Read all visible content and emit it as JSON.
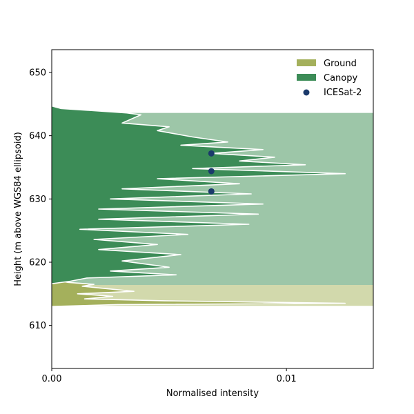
{
  "chart_data": {
    "type": "area",
    "xlabel": "Normalised intensity",
    "ylabel": "Height (m above WGS84 ellipsoid)",
    "xlim": [
      0.0,
      0.0137
    ],
    "ylim": [
      603.2,
      653.6
    ],
    "x_ticks": [
      0.0,
      0.01
    ],
    "x_tick_labels": [
      "0.00",
      "0.01"
    ],
    "y_ticks": [
      610,
      620,
      630,
      640,
      650
    ],
    "y_tick_labels": [
      "610",
      "620",
      "630",
      "640",
      "650"
    ],
    "grid": false,
    "legend_position": "top-right",
    "colors": {
      "ground": "#a4b05c",
      "ground_band": "#d2d9ac",
      "canopy": "#3c8c57",
      "canopy_band": "#9dc6a8",
      "profile_line": "#ffffff",
      "icesat": "#1b3a6b"
    },
    "legend": [
      {
        "label": "Ground",
        "kind": "patch",
        "color": "#a4b05c"
      },
      {
        "label": "Canopy",
        "kind": "patch",
        "color": "#3c8c57"
      },
      {
        "label": "ICESat-2",
        "kind": "marker",
        "color": "#1b3a6b"
      }
    ],
    "bands": [
      {
        "name": "Ground",
        "y_range": [
          613.1,
          616.4
        ],
        "color": "#d2d9ac"
      },
      {
        "name": "Canopy",
        "y_range": [
          616.4,
          643.6
        ],
        "color": "#9dc6a8"
      }
    ],
    "series": [
      {
        "name": "Ground",
        "fill": "#a4b05c",
        "points": [
          [
            0.0,
            617.3
          ],
          [
            0.0007,
            616.8
          ],
          [
            0.0018,
            616.5
          ],
          [
            0.0013,
            616.2
          ],
          [
            0.0021,
            615.9
          ],
          [
            0.0035,
            615.4
          ],
          [
            0.0011,
            615.0
          ],
          [
            0.0026,
            614.6
          ],
          [
            0.0014,
            614.2
          ],
          [
            0.0048,
            613.9
          ],
          [
            0.0125,
            613.5
          ],
          [
            0.0028,
            613.3
          ],
          [
            0.0,
            613.0
          ]
        ]
      },
      {
        "name": "Canopy",
        "fill": "#3c8c57",
        "points": [
          [
            0.0,
            644.7
          ],
          [
            0.0004,
            644.3
          ],
          [
            0.0032,
            643.6
          ],
          [
            0.0038,
            643.3
          ],
          [
            0.003,
            642.0
          ],
          [
            0.005,
            641.4
          ],
          [
            0.0045,
            640.8
          ],
          [
            0.006,
            639.8
          ],
          [
            0.0075,
            639.0
          ],
          [
            0.0055,
            638.5
          ],
          [
            0.009,
            637.8
          ],
          [
            0.0068,
            637.2
          ],
          [
            0.0095,
            636.6
          ],
          [
            0.008,
            636.0
          ],
          [
            0.0108,
            635.4
          ],
          [
            0.006,
            634.8
          ],
          [
            0.0125,
            634.0
          ],
          [
            0.0045,
            633.2
          ],
          [
            0.008,
            632.4
          ],
          [
            0.003,
            631.6
          ],
          [
            0.0085,
            630.8
          ],
          [
            0.0025,
            630.0
          ],
          [
            0.009,
            629.2
          ],
          [
            0.002,
            628.4
          ],
          [
            0.0088,
            627.6
          ],
          [
            0.002,
            626.8
          ],
          [
            0.0084,
            626.0
          ],
          [
            0.0012,
            625.2
          ],
          [
            0.0058,
            624.4
          ],
          [
            0.0018,
            623.6
          ],
          [
            0.0045,
            622.8
          ],
          [
            0.002,
            622.0
          ],
          [
            0.0055,
            621.2
          ],
          [
            0.003,
            620.2
          ],
          [
            0.005,
            619.2
          ],
          [
            0.0025,
            618.6
          ],
          [
            0.0053,
            618.0
          ],
          [
            0.0015,
            617.5
          ],
          [
            0.0008,
            617.0
          ],
          [
            0.0,
            616.6
          ]
        ]
      },
      {
        "name": "ICESat-2",
        "marker": "circle",
        "color": "#1b3a6b",
        "points": [
          [
            0.0068,
            637.2
          ],
          [
            0.0068,
            634.4
          ],
          [
            0.0068,
            631.2
          ]
        ]
      }
    ]
  }
}
